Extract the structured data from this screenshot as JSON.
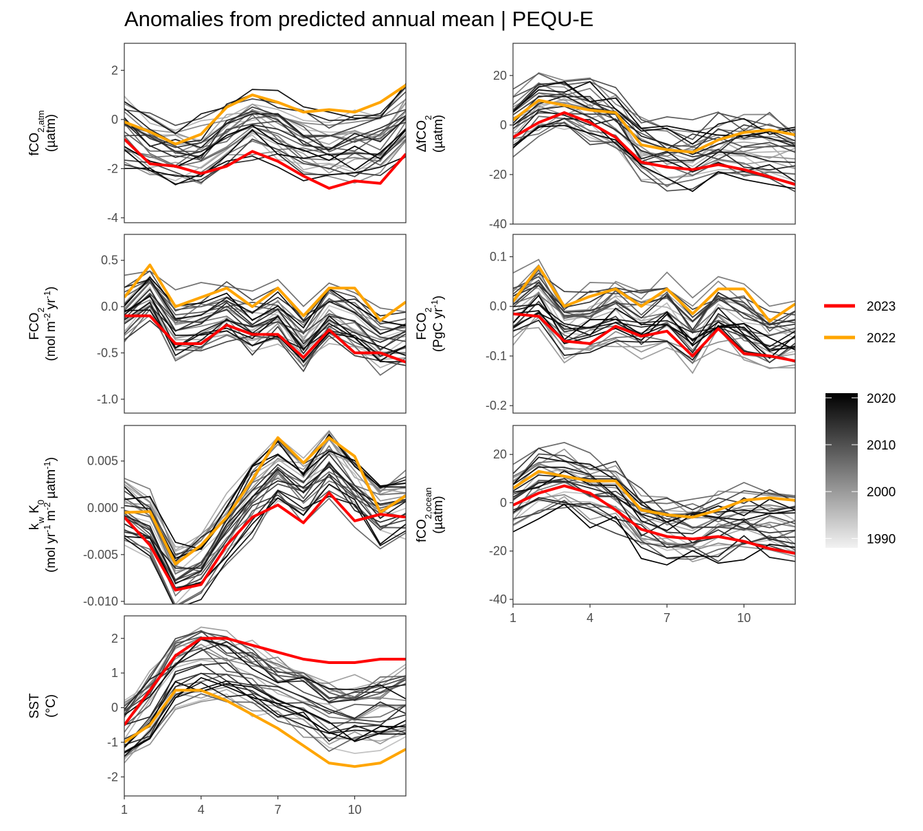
{
  "title": "Anomalies from predicted annual mean | PEQU-E",
  "colors": {
    "year_2023": "#ff0000",
    "year_2022": "#ffa500",
    "gradient_old": "#f2f2f2",
    "gradient_new": "#000000",
    "panel_border": "#333333"
  },
  "legend": {
    "highlight": [
      {
        "label": "2023",
        "color": "#ff0000"
      },
      {
        "label": "2022",
        "color": "#ffa500"
      }
    ],
    "colorbar": {
      "labels": [
        "2020",
        "2010",
        "2000",
        "1990"
      ],
      "values": [
        2020,
        2010,
        2000,
        1990
      ],
      "min": 1988,
      "max": 2021
    }
  },
  "chart_data": [
    {
      "type": "line",
      "id": "fco2atm",
      "ylabel": {
        "main": "fCO",
        "sub": "2,atm",
        "line2": "(µatm)"
      },
      "x": [
        1,
        2,
        3,
        4,
        5,
        6,
        7,
        8,
        9,
        10,
        11,
        12
      ],
      "xlim": [
        1,
        12
      ],
      "ylim": [
        -4.2,
        3.1
      ],
      "yticks": [
        {
          "v": 2,
          "label": "2"
        },
        {
          "v": 0,
          "label": "0"
        },
        {
          "v": -2,
          "label": "-2"
        },
        {
          "v": -4,
          "label": "-4"
        }
      ],
      "series": [
        {
          "name": "2023",
          "values": [
            -0.8,
            -1.8,
            -1.9,
            -2.2,
            -1.9,
            -1.3,
            -1.7,
            -2.3,
            -2.8,
            -2.5,
            -2.6,
            -1.4
          ]
        },
        {
          "name": "2022",
          "values": [
            -0.1,
            -0.5,
            -1.0,
            -0.6,
            0.5,
            1.0,
            0.7,
            0.3,
            0.4,
            0.3,
            0.7,
            1.4
          ]
        }
      ]
    },
    {
      "type": "line",
      "id": "dfco2",
      "ylabel": {
        "main": "ΔfCO",
        "sub": "2",
        "line2": "(µatm)"
      },
      "x": [
        1,
        2,
        3,
        4,
        5,
        6,
        7,
        8,
        9,
        10,
        11,
        12
      ],
      "xlim": [
        1,
        12
      ],
      "ylim": [
        -40,
        33
      ],
      "yticks": [
        {
          "v": 20,
          "label": "20"
        },
        {
          "v": 0,
          "label": "0"
        },
        {
          "v": -20,
          "label": "-20"
        },
        {
          "v": -40,
          "label": "-40"
        }
      ],
      "series": [
        {
          "name": "2023",
          "values": [
            -5,
            1,
            5,
            1,
            -5,
            -15,
            -17,
            -18,
            -16,
            -18,
            -21,
            -24
          ]
        },
        {
          "name": "2022",
          "values": [
            2,
            10,
            8,
            6,
            5,
            -8,
            -10,
            -11,
            -6,
            -3,
            -2,
            -4
          ]
        }
      ]
    },
    {
      "type": "line",
      "id": "fco2-flux-area",
      "ylabel": {
        "parts": [
          [
            "FCO",
            ""
          ],
          [
            "2",
            "sub"
          ]
        ],
        "line2": [
          [
            "(mol m",
            ""
          ],
          [
            "-2",
            "sup"
          ],
          [
            " yr",
            ""
          ],
          [
            "-1",
            "sup"
          ],
          [
            ")",
            ""
          ]
        ]
      },
      "x": [
        1,
        2,
        3,
        4,
        5,
        6,
        7,
        8,
        9,
        10,
        11,
        12
      ],
      "xlim": [
        1,
        12
      ],
      "ylim": [
        -1.15,
        0.78
      ],
      "yticks": [
        {
          "v": 0.5,
          "label": "0.5"
        },
        {
          "v": 0.0,
          "label": "0.0"
        },
        {
          "v": -0.5,
          "label": "-0.5"
        },
        {
          "v": -1.0,
          "label": "-1.0"
        }
      ],
      "series": [
        {
          "name": "2023",
          "values": [
            -0.1,
            -0.1,
            -0.4,
            -0.4,
            -0.2,
            -0.3,
            -0.3,
            -0.55,
            -0.25,
            -0.5,
            -0.5,
            -0.6
          ]
        },
        {
          "name": "2022",
          "values": [
            0.1,
            0.45,
            0.0,
            0.1,
            0.2,
            0.0,
            0.2,
            -0.1,
            0.2,
            0.2,
            -0.15,
            0.05
          ]
        }
      ]
    },
    {
      "type": "line",
      "id": "fco2-flux-total",
      "ylabel": {
        "parts": [
          [
            "FCO",
            ""
          ],
          [
            "2",
            "sub"
          ]
        ],
        "line2": [
          [
            "(PgC yr",
            ""
          ],
          [
            "-1",
            "sup"
          ],
          [
            ")",
            ""
          ]
        ]
      },
      "x": [
        1,
        2,
        3,
        4,
        5,
        6,
        7,
        8,
        9,
        10,
        11,
        12
      ],
      "xlim": [
        1,
        12
      ],
      "ylim": [
        -0.215,
        0.145
      ],
      "yticks": [
        {
          "v": 0.1,
          "label": "0.1"
        },
        {
          "v": 0.0,
          "label": "0.0"
        },
        {
          "v": -0.1,
          "label": "-0.1"
        },
        {
          "v": -0.2,
          "label": "-0.2"
        }
      ],
      "series": [
        {
          "name": "2023",
          "values": [
            -0.015,
            -0.02,
            -0.07,
            -0.075,
            -0.04,
            -0.06,
            -0.05,
            -0.1,
            -0.045,
            -0.095,
            -0.1,
            -0.11
          ]
        },
        {
          "name": "2022",
          "values": [
            0.01,
            0.08,
            0.0,
            0.02,
            0.035,
            0.0,
            0.035,
            -0.015,
            0.035,
            0.035,
            -0.03,
            0.005
          ]
        }
      ]
    },
    {
      "type": "line",
      "id": "kw-k0",
      "ylabel": {
        "parts": [
          [
            "k",
            ""
          ],
          [
            "w",
            "sub"
          ],
          [
            " K",
            ""
          ],
          [
            "0",
            "sub"
          ]
        ],
        "line2": [
          [
            "(mol yr",
            ""
          ],
          [
            "-1",
            "sup"
          ],
          [
            " m",
            ""
          ],
          [
            "-2",
            "sup"
          ],
          [
            " µatm",
            ""
          ],
          [
            "-1",
            "sup"
          ],
          [
            ")",
            ""
          ]
        ]
      },
      "x": [
        1,
        2,
        3,
        4,
        5,
        6,
        7,
        8,
        9,
        10,
        11,
        12
      ],
      "xlim": [
        1,
        12
      ],
      "ylim": [
        -0.0103,
        0.0088
      ],
      "yticks": [
        {
          "v": 0.005,
          "label": "0.005"
        },
        {
          "v": 0.0,
          "label": "0.000"
        },
        {
          "v": -0.005,
          "label": "-0.005"
        },
        {
          "v": -0.01,
          "label": "-0.010"
        }
      ],
      "series": [
        {
          "name": "2023",
          "values": [
            -0.001,
            -0.004,
            -0.0088,
            -0.0082,
            -0.004,
            -0.001,
            0.0003,
            -0.0016,
            0.0016,
            -0.0014,
            -0.0007,
            -0.001
          ]
        },
        {
          "name": "2022",
          "values": [
            -0.0005,
            -0.0004,
            -0.006,
            -0.004,
            -0.001,
            0.003,
            0.0075,
            0.0048,
            0.0075,
            0.0055,
            -0.0005,
            0.0013
          ]
        }
      ]
    },
    {
      "type": "line",
      "id": "fco2ocean",
      "ylabel": {
        "main": "fCO",
        "sub": "2,ocean",
        "line2": "(µatm)"
      },
      "x": [
        1,
        2,
        3,
        4,
        5,
        6,
        7,
        8,
        9,
        10,
        11,
        12
      ],
      "xlim": [
        1,
        12
      ],
      "ylim": [
        -42,
        32
      ],
      "yticks": [
        {
          "v": 20,
          "label": "20"
        },
        {
          "v": 0,
          "label": "0"
        },
        {
          "v": -20,
          "label": "-20"
        },
        {
          "v": -40,
          "label": "-40"
        }
      ],
      "series": [
        {
          "name": "2023",
          "values": [
            -1,
            4,
            7,
            4,
            -3,
            -11,
            -14,
            -15,
            -14,
            -16,
            -19,
            -21
          ]
        },
        {
          "name": "2022",
          "values": [
            6,
            13,
            11,
            9,
            9,
            -3,
            -5,
            -6,
            -3,
            1,
            2,
            1
          ]
        }
      ]
    },
    {
      "type": "line",
      "id": "sst",
      "ylabel": {
        "main": "SST",
        "line2": "(°C)"
      },
      "x": [
        1,
        2,
        3,
        4,
        5,
        6,
        7,
        8,
        9,
        10,
        11,
        12
      ],
      "xlim": [
        1,
        12
      ],
      "ylim": [
        -2.55,
        2.65
      ],
      "yticks": [
        {
          "v": 2,
          "label": "2"
        },
        {
          "v": 1,
          "label": "1"
        },
        {
          "v": 0,
          "label": "0"
        },
        {
          "v": -1,
          "label": "-1"
        },
        {
          "v": -2,
          "label": "-2"
        }
      ],
      "series": [
        {
          "name": "2023",
          "values": [
            -0.5,
            0.5,
            1.5,
            2.0,
            2.0,
            1.8,
            1.6,
            1.4,
            1.3,
            1.3,
            1.4,
            1.4
          ]
        },
        {
          "name": "2022",
          "values": [
            -1.0,
            -0.5,
            0.5,
            0.5,
            0.2,
            -0.2,
            -0.6,
            -1.1,
            -1.6,
            -1.7,
            -1.6,
            -1.2
          ]
        }
      ]
    }
  ],
  "xticks": [
    "1",
    "4",
    "7",
    "10"
  ]
}
